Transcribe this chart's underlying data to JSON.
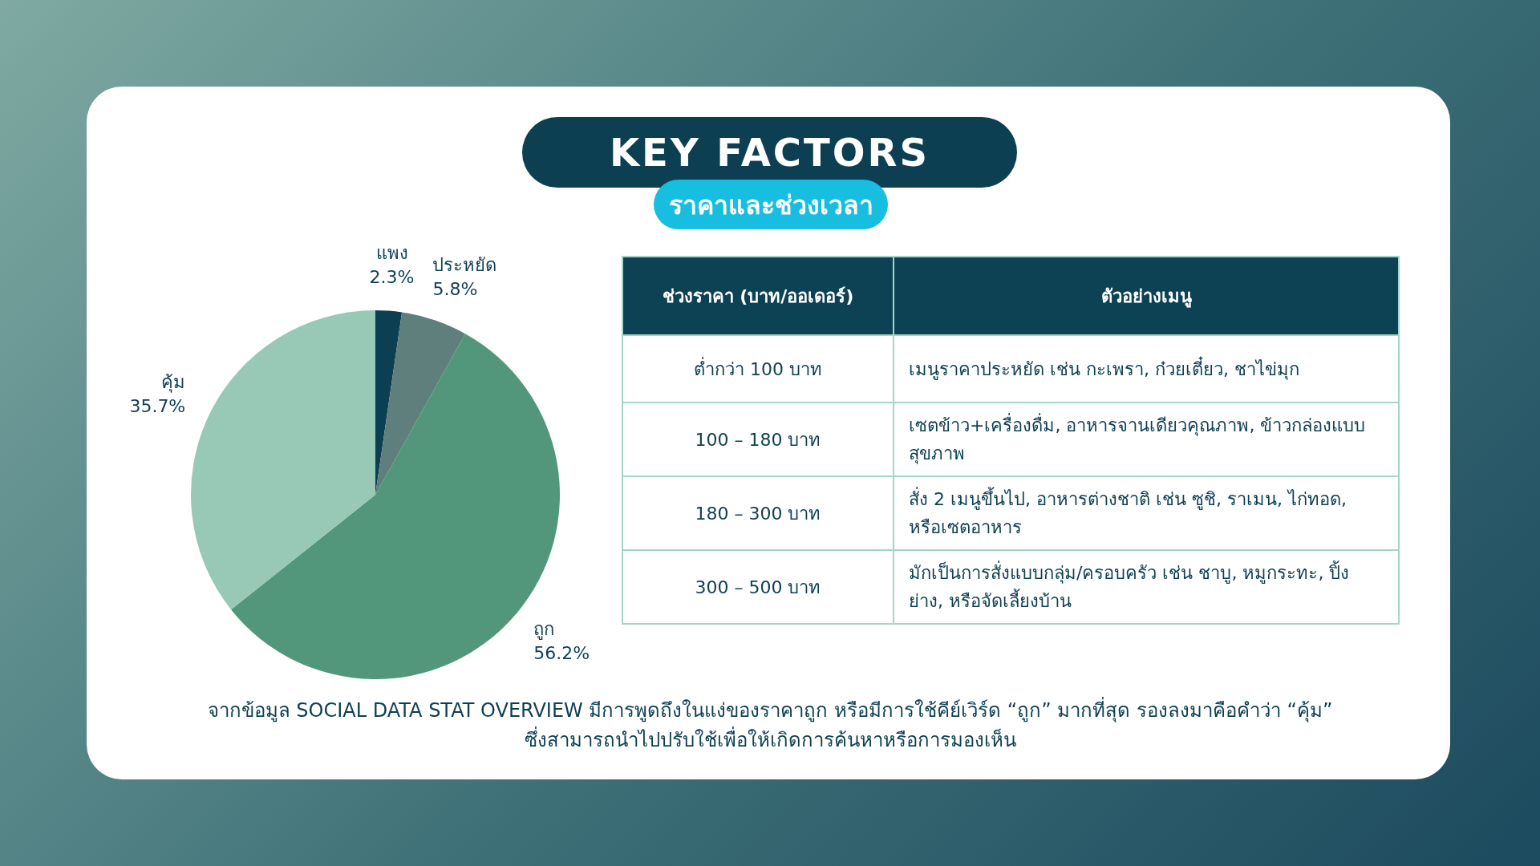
{
  "chart_data": [
    {
      "type": "pie",
      "title": "KEY FACTORS",
      "subtitle": "ราคาและช่วงเวลา",
      "categories": [
        "แพง",
        "ประหยัด",
        "ถูก",
        "คุ้ม"
      ],
      "values": [
        2.3,
        5.8,
        56.2,
        35.7
      ],
      "colors": [
        "#0d3f52",
        "#5e7f7b",
        "#52977c",
        "#98c9b7"
      ],
      "value_labels": [
        "2.3%",
        "5.8%",
        "56.2%",
        "35.7%"
      ],
      "legend": false,
      "annotations": [
        "จากข้อมูล SOCIAL DATA STAT OVERVIEW มีการพูดถึงในแง่ของราคาถูก หรือมีการใช้คีย์เวิร์ด “ถูก” มากที่สุด รองลงมาคือคำว่า “คุ้ม” ซึ่งสามารถนำไปปรับใช้เพื่อให้เกิดการค้นหาหรือการมองเห็น"
      ]
    },
    {
      "type": "other",
      "annotations": [
        "ช่วงราคา (บาท/ออเดอร์)",
        "ตัวอย่างเมนู",
        "ต่ำกว่า 100 บาท",
        "เมนูราคาประหยัด เช่น กะเพรา, ก๋วยเตี๋ยว, ชาไข่มุก",
        "100 – 180 บาท",
        "เซตข้าว+เครื่องดื่ม, อาหารจานเดียวคุณภาพ, ข้าวกล่องแบบสุขภาพ",
        "180 – 300 บาท",
        "สั่ง 2 เมนูขึ้นไป, อาหารต่างชาติ เช่น ซูชิ, ราเมน, ไก่ทอด, หรือเซตอาหาร",
        "300 – 500 บาท",
        "มักเป็นการสั่งแบบกลุ่ม/ครอบครัว เช่น ชาบู, หมูกระทะ, ปิ้งย่าง, หรือจัดเลี้ยงบ้าน"
      ]
    }
  ]
}
